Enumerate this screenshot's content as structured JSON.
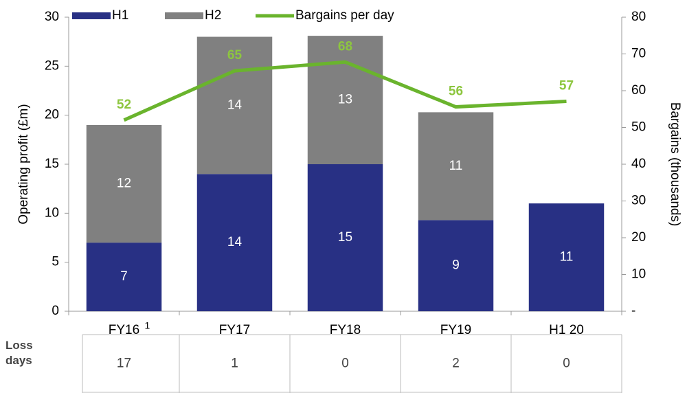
{
  "chart_data": {
    "type": "bar",
    "stacked": true,
    "categories": [
      "FY16",
      "FY17",
      "FY18",
      "FY19",
      "H1 20"
    ],
    "annotations": [
      {
        "text": "1",
        "category": "FY16"
      }
    ],
    "series": [
      {
        "name": "H1",
        "color": "#283084",
        "values": [
          7,
          14,
          15,
          9.3,
          11
        ],
        "value_labels": [
          "7",
          "14",
          "15",
          "9",
          "11"
        ]
      },
      {
        "name": "H2",
        "color": "#808080",
        "values": [
          12,
          14,
          13.1,
          11,
          null
        ],
        "value_labels": [
          "12",
          "14",
          "13",
          "11",
          null
        ]
      },
      {
        "name": "Bargains per day",
        "type": "line",
        "axis": "y2",
        "color": "#6ab42d",
        "label_color": "#8dc63f",
        "values": [
          52,
          65.4,
          67.8,
          55.6,
          57.1
        ],
        "value_labels": [
          "52",
          "65",
          "68",
          "56",
          "57"
        ]
      }
    ],
    "ylabel": "Operating profit (£m)",
    "y2label": "Bargains (thousands)",
    "ylim": [
      0,
      30
    ],
    "yticks": [
      0,
      5,
      10,
      15,
      20,
      25,
      30
    ],
    "y2lim": [
      0,
      80
    ],
    "y2ticks": [
      {
        "value": 0,
        "label": "-"
      },
      10,
      20,
      30,
      40,
      50,
      60,
      70,
      80
    ],
    "legend": "top",
    "table": {
      "label": "Loss days",
      "values": [
        17,
        1,
        0,
        2,
        0
      ]
    }
  }
}
